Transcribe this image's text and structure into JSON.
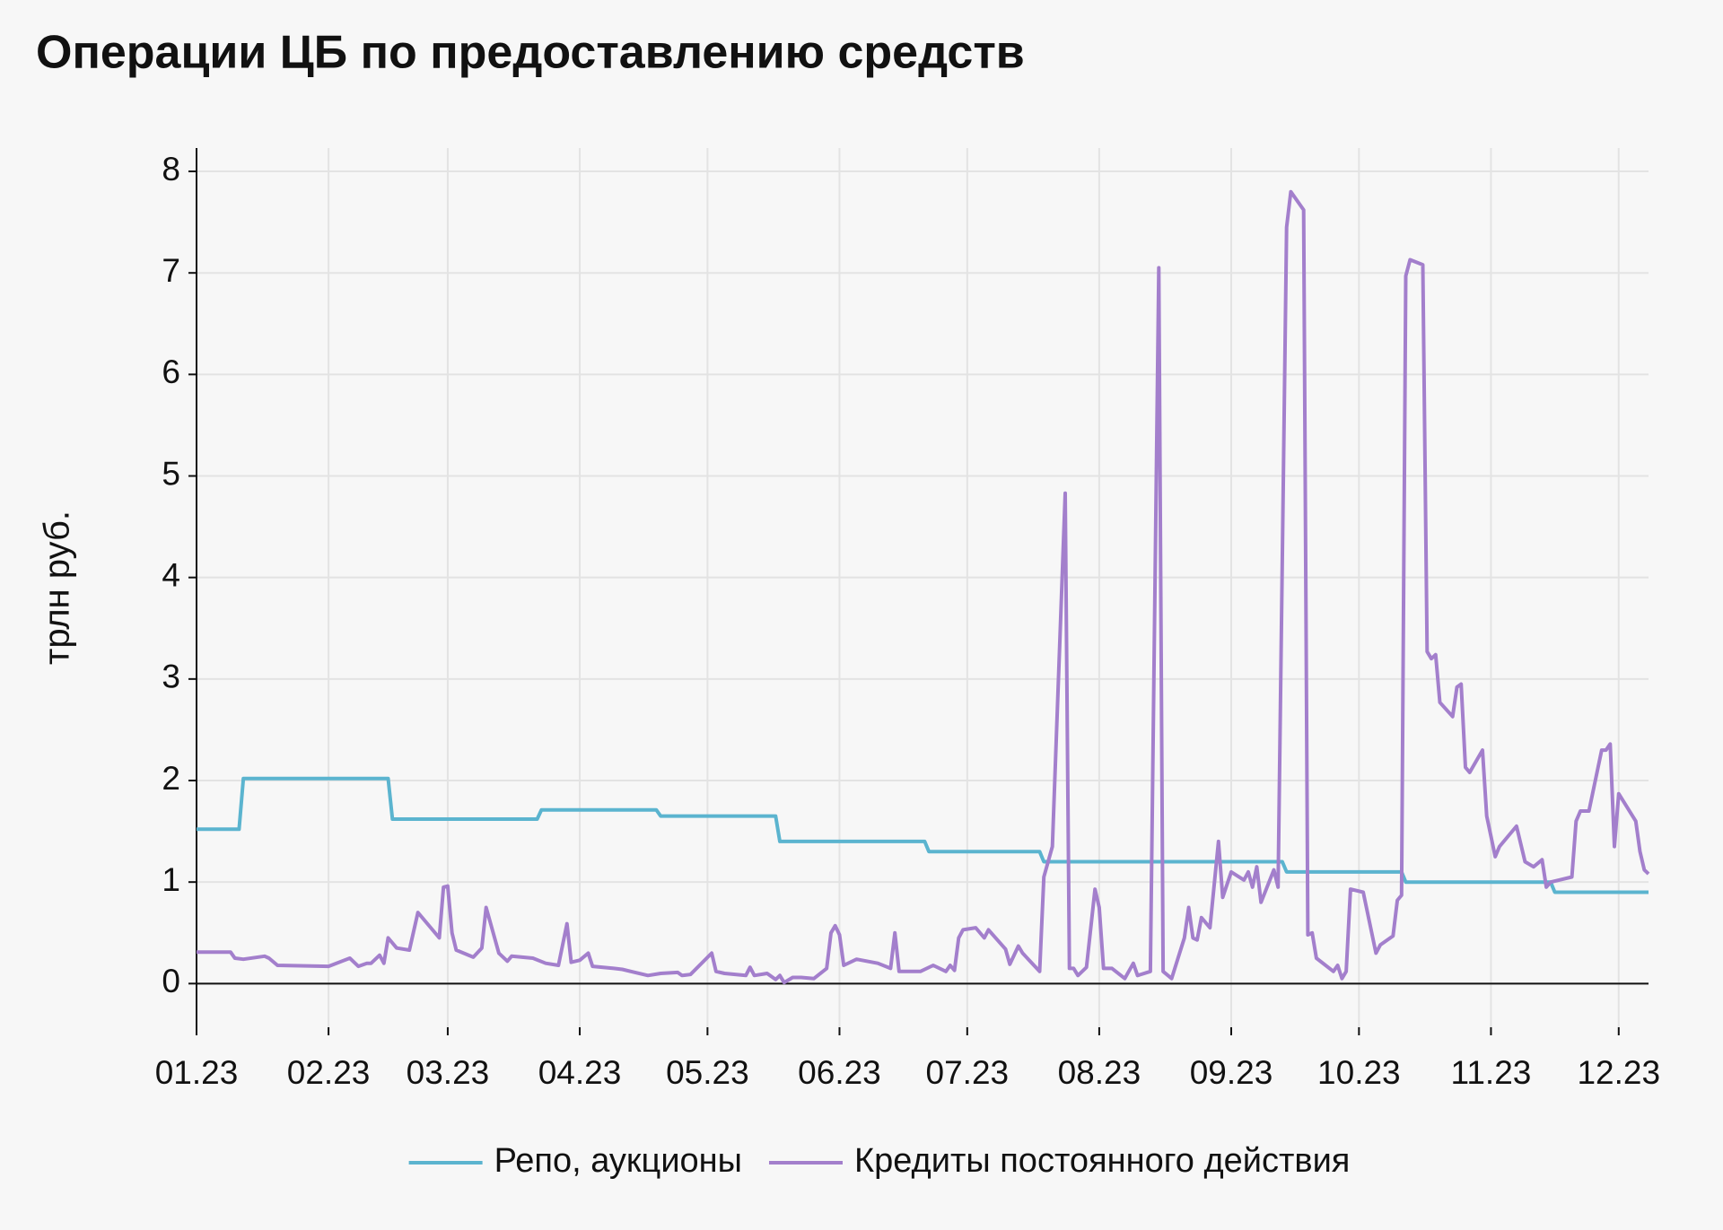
{
  "chart_data": {
    "type": "line",
    "title": "Операции ЦБ по предоставлению средств",
    "y_label": "трлн руб.",
    "xlim": [
      0,
      341
    ],
    "xticks": [
      {
        "value": 0,
        "label": "01.23"
      },
      {
        "value": 31,
        "label": "02.23"
      },
      {
        "value": 59,
        "label": "03.23"
      },
      {
        "value": 90,
        "label": "04.23"
      },
      {
        "value": 120,
        "label": "05.23"
      },
      {
        "value": 151,
        "label": "06.23"
      },
      {
        "value": 181,
        "label": "07.23"
      },
      {
        "value": 212,
        "label": "08.23"
      },
      {
        "value": 243,
        "label": "09.23"
      },
      {
        "value": 273,
        "label": "10.23"
      },
      {
        "value": 304,
        "label": "11.23"
      },
      {
        "value": 334,
        "label": "12.23"
      }
    ],
    "ylim": [
      -0.43,
      8.23
    ],
    "yticks": [
      0,
      1,
      2,
      3,
      4,
      5,
      6,
      7,
      8
    ],
    "grid": true,
    "legend": "bottom",
    "series": [
      {
        "name": "Репо, аукционы",
        "color": "#5bb4cf",
        "x": [
          0,
          10,
          11,
          45,
          46,
          80,
          81,
          108,
          109,
          136,
          137,
          171,
          172,
          198,
          199,
          255,
          256,
          283,
          284,
          318,
          319,
          341
        ],
        "values": [
          1.52,
          1.52,
          2.02,
          2.02,
          1.62,
          1.62,
          1.71,
          1.71,
          1.65,
          1.65,
          1.4,
          1.4,
          1.3,
          1.3,
          1.2,
          1.2,
          1.1,
          1.1,
          1.0,
          1.0,
          0.9,
          0.9
        ]
      },
      {
        "name": "Кредиты постоянного действия",
        "color": "#a37fcc",
        "x": [
          0,
          8,
          9,
          11,
          16,
          17,
          19,
          31,
          36,
          38,
          40,
          41,
          43,
          44,
          45,
          47,
          50,
          52,
          57,
          58,
          59,
          60,
          61,
          65,
          67,
          68,
          71,
          73,
          74,
          79,
          82,
          85,
          87,
          88,
          90,
          92,
          93,
          98,
          100,
          102,
          106,
          109,
          113,
          114,
          116,
          121,
          122,
          124,
          129,
          130,
          131,
          134,
          136,
          137,
          138,
          140,
          142,
          145,
          148,
          149,
          150,
          151,
          152,
          155,
          160,
          163,
          164,
          165,
          170,
          173,
          176,
          177,
          178,
          179,
          180,
          183,
          185,
          186,
          190,
          191,
          193,
          194,
          198,
          199,
          201,
          204,
          205,
          206,
          207,
          209,
          211,
          212,
          213,
          215,
          218,
          220,
          221,
          224,
          226,
          227,
          229,
          232,
          233,
          234,
          235,
          236,
          238,
          240,
          241,
          243,
          246,
          247,
          248,
          249,
          250,
          253,
          254,
          256,
          257,
          260,
          261,
          262,
          263,
          267,
          268,
          269,
          270,
          271,
          274,
          277,
          278,
          281,
          282,
          283,
          284,
          285,
          288,
          289,
          290,
          291,
          292,
          295,
          296,
          297,
          298,
          299,
          302,
          303,
          305,
          306,
          310,
          312,
          314,
          316,
          317,
          318,
          320,
          323,
          324,
          325,
          327,
          330,
          331,
          332,
          333,
          334,
          338,
          339,
          340,
          341
        ],
        "values": [
          0.31,
          0.31,
          0.25,
          0.24,
          0.27,
          0.25,
          0.18,
          0.17,
          0.25,
          0.17,
          0.2,
          0.2,
          0.28,
          0.2,
          0.45,
          0.35,
          0.33,
          0.7,
          0.45,
          0.95,
          0.96,
          0.5,
          0.33,
          0.26,
          0.35,
          0.75,
          0.3,
          0.22,
          0.27,
          0.25,
          0.2,
          0.18,
          0.59,
          0.21,
          0.23,
          0.3,
          0.17,
          0.15,
          0.14,
          0.12,
          0.08,
          0.1,
          0.11,
          0.08,
          0.09,
          0.3,
          0.12,
          0.1,
          0.08,
          0.16,
          0.08,
          0.1,
          0.04,
          0.08,
          0.01,
          0.06,
          0.06,
          0.05,
          0.15,
          0.5,
          0.57,
          0.48,
          0.18,
          0.24,
          0.2,
          0.15,
          0.5,
          0.12,
          0.12,
          0.18,
          0.12,
          0.18,
          0.13,
          0.45,
          0.53,
          0.55,
          0.45,
          0.53,
          0.34,
          0.19,
          0.37,
          0.3,
          0.12,
          1.05,
          1.35,
          4.83,
          0.15,
          0.15,
          0.08,
          0.16,
          0.93,
          0.75,
          0.15,
          0.15,
          0.05,
          0.2,
          0.08,
          0.12,
          7.05,
          0.12,
          0.05,
          0.45,
          0.75,
          0.45,
          0.43,
          0.65,
          0.55,
          1.4,
          0.85,
          1.1,
          1.02,
          1.1,
          0.95,
          1.15,
          0.8,
          1.12,
          0.95,
          7.45,
          7.8,
          7.62,
          0.48,
          0.5,
          0.25,
          0.12,
          0.18,
          0.05,
          0.12,
          0.93,
          0.9,
          0.3,
          0.38,
          0.47,
          0.82,
          0.87,
          6.97,
          7.13,
          7.08,
          3.27,
          3.2,
          3.24,
          2.77,
          2.63,
          2.92,
          2.95,
          2.13,
          2.08,
          2.3,
          1.65,
          1.25,
          1.35,
          1.55,
          1.2,
          1.15,
          1.22,
          0.95,
          1.0,
          1.02,
          1.05,
          1.6,
          1.7,
          1.7,
          2.3,
          2.3,
          2.36,
          1.35,
          1.87,
          1.6,
          1.3,
          1.12,
          1.08
        ]
      }
    ]
  }
}
